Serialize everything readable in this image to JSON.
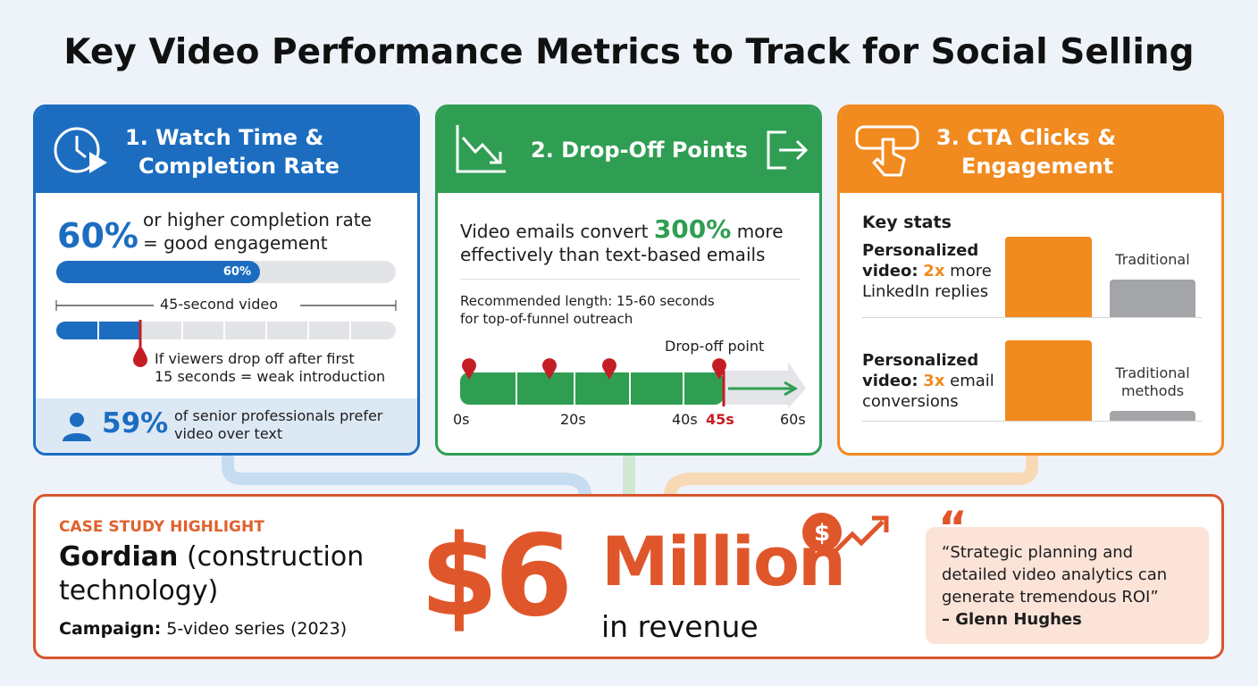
{
  "title": "Key Video Performance Metrics to Track for Social Selling",
  "cards": [
    {
      "heading_line1": "1. Watch Time &",
      "heading_line2": "Completion Rate",
      "stat": "60%",
      "stat_text_line1": "or higher completion rate",
      "stat_text_line2": "= good engagement",
      "bar_label": "60%",
      "video_label": "45-second video",
      "drop_note_line1": "If viewers drop off after first",
      "drop_note_line2": "15 seconds = weak introduction",
      "footer_stat": "59%",
      "footer_text_line1": "of senior professionals prefer",
      "footer_text_line2": "video over text"
    },
    {
      "heading": "2. Drop-Off Points",
      "claim_pre": "Video emails convert",
      "claim_stat": "300%",
      "claim_post": "more",
      "claim_line2": "effectively than text-based emails",
      "recommend_line1": "Recommended length: 15-60 seconds",
      "recommend_line2": "for top-of-funnel outreach",
      "dropoff_label": "Drop-off point",
      "axis_labels": [
        "0s",
        "20s",
        "40s",
        "45s",
        "60s"
      ]
    },
    {
      "heading_line1": "3. CTA Clicks &",
      "heading_line2": "Engagement",
      "key_stats": "Key stats",
      "rows": [
        {
          "line1": "Personalized",
          "line2_bold": "video:",
          "multiplier": "2x",
          "line2_rest": "more",
          "line3": "LinkedIn replies",
          "compare": [
            "Traditional"
          ]
        },
        {
          "line1": "Personalized",
          "line2_bold": "video:",
          "multiplier": "3x",
          "line2_rest": "email",
          "line3": "conversions",
          "compare": [
            "Traditional",
            "methods"
          ]
        }
      ]
    }
  ],
  "case_study": {
    "kicker": "CASE STUDY HIGHLIGHT",
    "company": "Gordian",
    "company_desc_line1": "(construction",
    "company_desc_line2": "technology)",
    "campaign_label": "Campaign:",
    "campaign_value": "5-video series (2023)",
    "amount": "$6",
    "amount_unit": "Million",
    "amount_caption": "in revenue",
    "quote_mark": "“",
    "quote_lines": [
      "“Strategic planning and",
      "detailed video analytics can",
      "generate tremendous ROI”"
    ],
    "quote_author": "– Glenn Hughes"
  }
}
